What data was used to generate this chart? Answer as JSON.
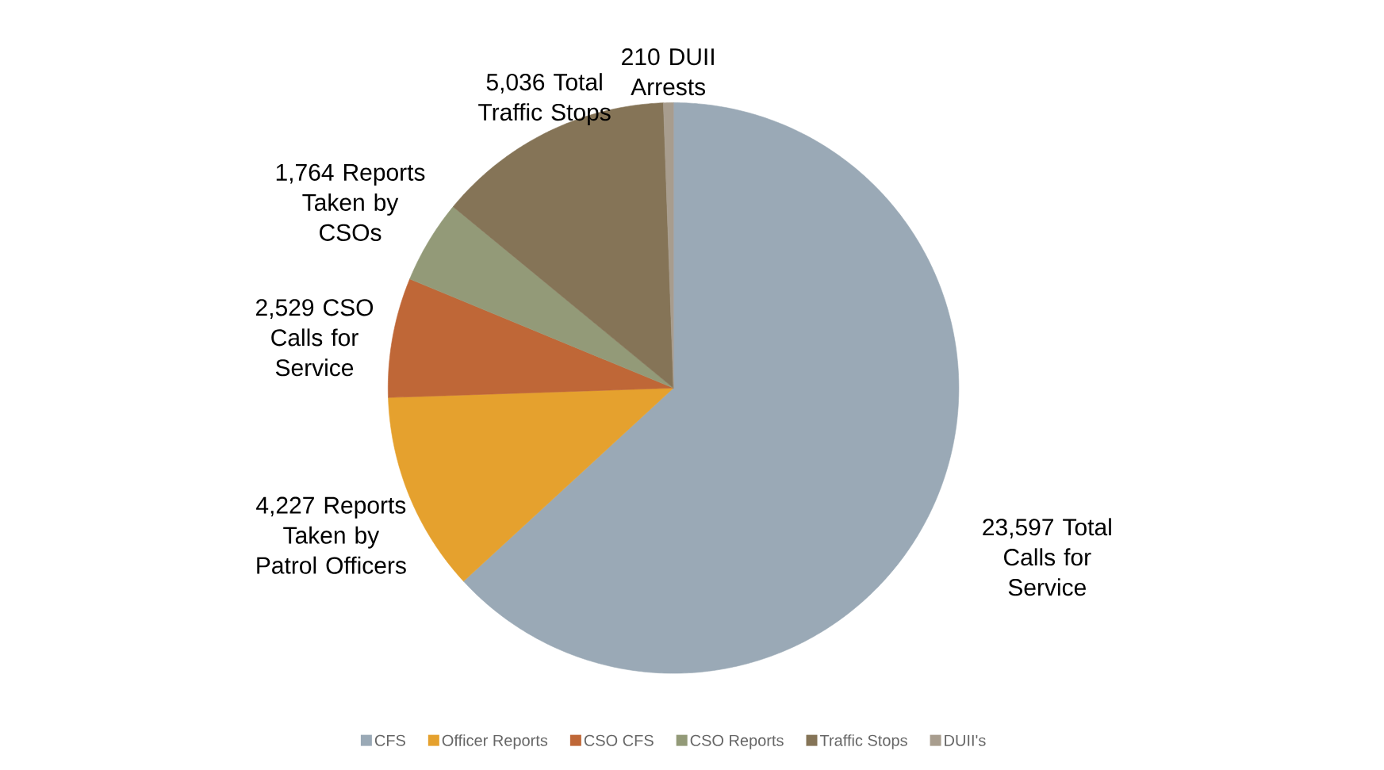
{
  "chart_data": {
    "type": "pie",
    "categories": [
      "CFS",
      "Officer Reports",
      "CSO CFS",
      "CSO Reports",
      "Traffic Stops",
      "DUII's"
    ],
    "values": [
      23597,
      4227,
      2529,
      1764,
      5036,
      210
    ],
    "colors": [
      "#9aa9b6",
      "#e5a12e",
      "#bf6737",
      "#939a78",
      "#857457",
      "#a89d8e"
    ],
    "value_labels": [
      "23,597 Total Calls for Service",
      "4,227 Reports Taken by Patrol Officers",
      "2,529 CSO Calls for Service",
      "1,764 Reports Taken by CSOs",
      "5,036 Total Traffic Stops",
      "210 DUII Arrests"
    ],
    "legend": "bottom"
  }
}
